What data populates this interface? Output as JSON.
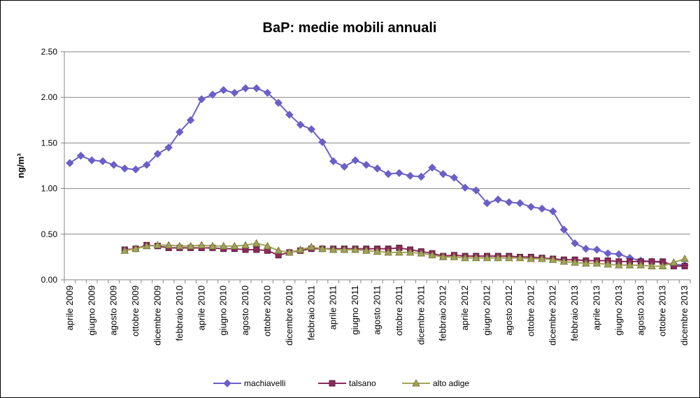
{
  "chart_data": {
    "type": "line",
    "title": "BaP: medie mobili annuali",
    "y_label": "ng/m³",
    "categories": [
      "aprile 2009",
      null,
      "giugno 2009",
      null,
      "agosto 2009",
      null,
      "ottobre 2009",
      null,
      "dicembre 2009",
      null,
      "febbraio 2010",
      null,
      "aprile 2010",
      null,
      "giugno 2010",
      null,
      "agosto 2010",
      null,
      "ottobre 2010",
      null,
      "dicembre 2010",
      null,
      "febbraio 2011",
      null,
      "aprile 2011",
      null,
      "giugno 2011",
      null,
      "agosto 2011",
      null,
      "ottobre 2011",
      null,
      "dicembre 2011",
      null,
      "febbraio 2012",
      null,
      "aprile 2012",
      null,
      "giugno 2012",
      null,
      "agosto 2012",
      null,
      "ottobre 2012",
      null,
      "dicembre 2012",
      null,
      "febbraio 2013",
      null,
      "aprile 2013",
      null,
      "giugno 2013",
      null,
      "agosto 2013",
      null,
      "ottobre 2013",
      null,
      "dicembre 2013"
    ],
    "series": [
      {
        "name": "machiavelli",
        "color": "#6a5fc8",
        "marker": "diamond",
        "values": [
          1.28,
          1.36,
          1.31,
          1.3,
          1.26,
          1.22,
          1.21,
          1.26,
          1.38,
          1.45,
          1.62,
          1.75,
          1.98,
          2.03,
          2.08,
          2.05,
          2.1,
          2.1,
          2.05,
          1.94,
          1.81,
          1.7,
          1.65,
          1.51,
          1.3,
          1.24,
          1.31,
          1.26,
          1.22,
          1.16,
          1.17,
          1.14,
          1.13,
          1.23,
          1.16,
          1.12,
          1.01,
          0.98,
          0.84,
          0.88,
          0.85,
          0.84,
          0.8,
          0.78,
          0.75,
          0.55,
          0.4,
          0.34,
          0.33,
          0.29,
          0.28,
          0.24,
          0.21,
          0.2,
          0.19,
          0.17,
          0.16
        ]
      },
      {
        "name": "talsano",
        "color": "#8c2a5a",
        "marker": "square",
        "values": [
          null,
          null,
          null,
          null,
          null,
          0.33,
          0.34,
          0.38,
          0.37,
          0.35,
          0.35,
          0.35,
          0.35,
          0.35,
          0.34,
          0.34,
          0.33,
          0.33,
          0.32,
          0.27,
          0.3,
          0.32,
          0.34,
          0.34,
          0.34,
          0.34,
          0.34,
          0.34,
          0.34,
          0.34,
          0.35,
          0.33,
          0.31,
          0.29,
          0.26,
          0.27,
          0.26,
          0.26,
          0.26,
          0.26,
          0.26,
          0.25,
          0.25,
          0.24,
          0.23,
          0.22,
          0.22,
          0.21,
          0.21,
          0.21,
          0.2,
          0.2,
          0.2,
          0.2,
          0.2,
          0.15,
          0.15
        ]
      },
      {
        "name": "alto adige",
        "color": "#a3a35a",
        "marker": "triangle",
        "values": [
          null,
          null,
          null,
          null,
          null,
          0.32,
          0.34,
          0.37,
          0.38,
          0.38,
          0.37,
          0.37,
          0.38,
          0.37,
          0.37,
          0.37,
          0.38,
          0.4,
          0.37,
          0.32,
          0.3,
          0.33,
          0.36,
          0.34,
          0.33,
          0.33,
          0.33,
          0.32,
          0.31,
          0.3,
          0.3,
          0.3,
          0.29,
          0.27,
          0.25,
          0.25,
          0.24,
          0.24,
          0.24,
          0.24,
          0.24,
          0.24,
          0.23,
          0.23,
          0.22,
          0.2,
          0.19,
          0.18,
          0.18,
          0.17,
          0.16,
          0.16,
          0.16,
          0.15,
          0.15,
          0.19,
          0.23
        ]
      }
    ],
    "ylim": [
      0,
      2.5
    ],
    "yticks": [
      {
        "value": 0,
        "label": "0.00"
      },
      {
        "value": 0.5,
        "label": "0.50"
      },
      {
        "value": 1,
        "label": "1.00"
      },
      {
        "value": 1.5,
        "label": "1.50"
      },
      {
        "value": 2,
        "label": "2.00"
      },
      {
        "value": 2.5,
        "label": "2.50"
      }
    ],
    "grid": true,
    "legend": "bottom"
  }
}
